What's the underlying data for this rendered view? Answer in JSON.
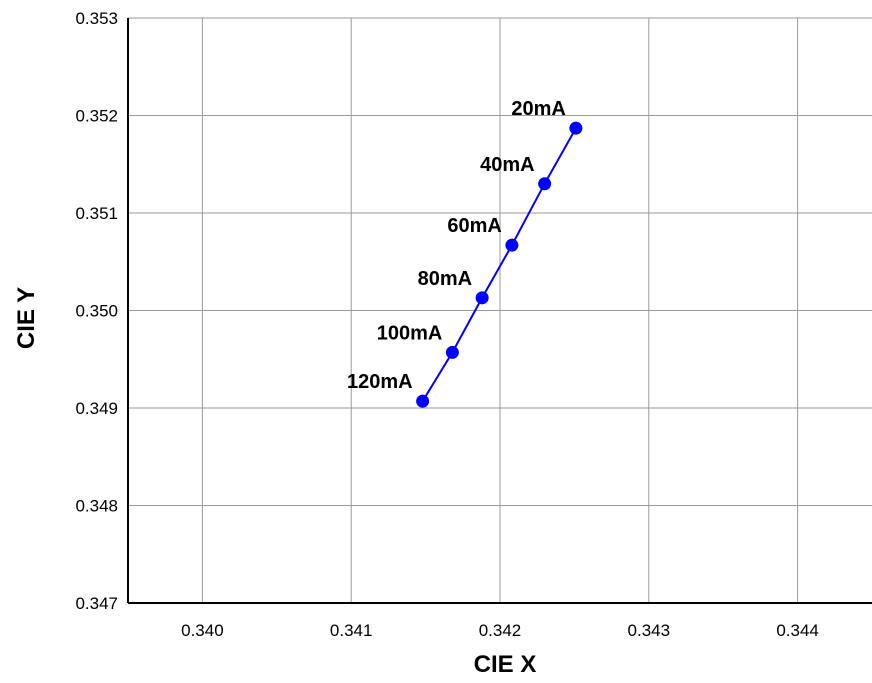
{
  "chart_data": {
    "type": "scatter",
    "xlabel": "CIE X",
    "ylabel": "CIE Y",
    "xlim": [
      0.3395,
      0.3445
    ],
    "ylim": [
      0.347,
      0.353
    ],
    "x_ticks": [
      "0.340",
      "0.341",
      "0.342",
      "0.343",
      "0.344"
    ],
    "y_ticks": [
      "0.347",
      "0.348",
      "0.349",
      "0.350",
      "0.351",
      "0.352",
      "0.353"
    ],
    "grid": true,
    "series": [
      {
        "color": "#0000ff",
        "points": [
          {
            "x": 0.34251,
            "y": 0.35187,
            "label": "20mA"
          },
          {
            "x": 0.3423,
            "y": 0.3513,
            "label": "40mA"
          },
          {
            "x": 0.34208,
            "y": 0.35067,
            "label": "60mA"
          },
          {
            "x": 0.34188,
            "y": 0.35013,
            "label": "80mA"
          },
          {
            "x": 0.34168,
            "y": 0.34957,
            "label": "100mA"
          },
          {
            "x": 0.34148,
            "y": 0.34907,
            "label": "120mA"
          }
        ]
      }
    ]
  }
}
